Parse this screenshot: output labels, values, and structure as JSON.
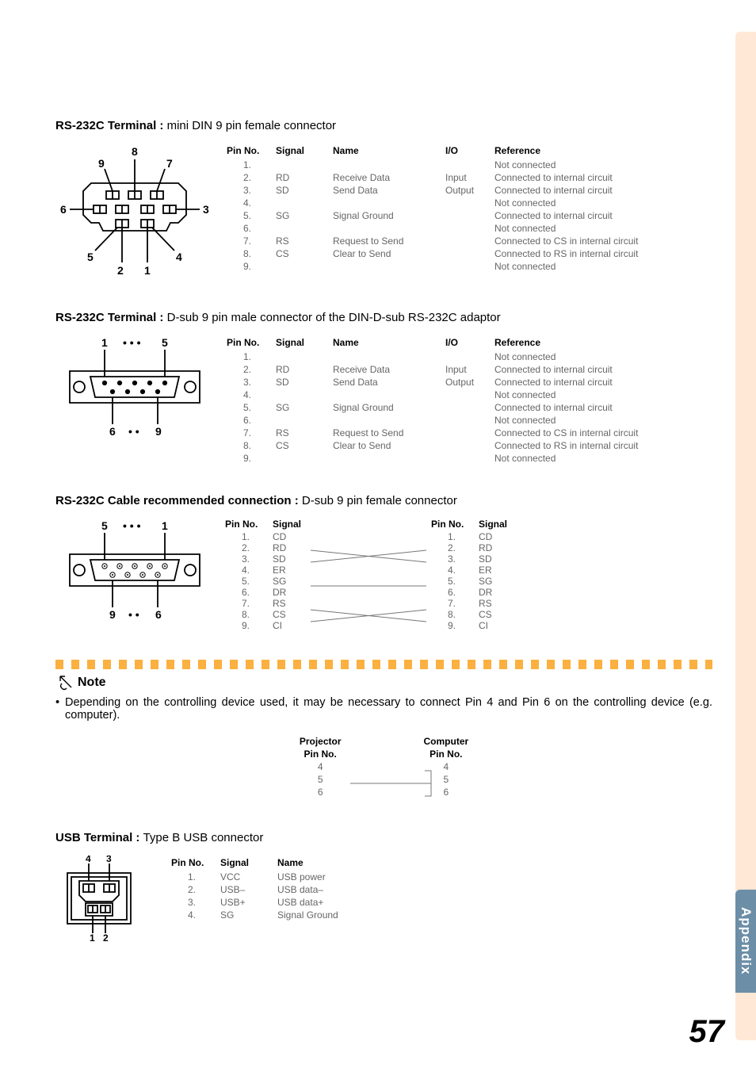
{
  "page": {
    "number": "57",
    "sideLabel": "Appendix"
  },
  "colors": {
    "sideTab": "#ffe8d6",
    "sideLabelBg": "#6c8ea6",
    "sideLabelText": "#ffffff",
    "noteBar": "#fbb040",
    "bodyText": "#000000",
    "tableText": "#666666"
  },
  "sections": {
    "din9": {
      "titleBold": "RS-232C Terminal : ",
      "titleReg": "mini DIN 9 pin female connector",
      "headers": [
        "Pin No.",
        "Signal",
        "Name",
        "I/O",
        "Reference"
      ],
      "diagramLabels": [
        "1",
        "2",
        "3",
        "4",
        "5",
        "6",
        "7",
        "8",
        "9"
      ],
      "rows": [
        {
          "pin": "1.",
          "signal": "",
          "name": "",
          "io": "",
          "ref": "Not connected"
        },
        {
          "pin": "2.",
          "signal": "RD",
          "name": "Receive Data",
          "io": "Input",
          "ref": "Connected to internal circuit"
        },
        {
          "pin": "3.",
          "signal": "SD",
          "name": "Send Data",
          "io": "Output",
          "ref": "Connected to internal circuit"
        },
        {
          "pin": "4.",
          "signal": "",
          "name": "",
          "io": "",
          "ref": "Not connected"
        },
        {
          "pin": "5.",
          "signal": "SG",
          "name": "Signal Ground",
          "io": "",
          "ref": "Connected to internal circuit"
        },
        {
          "pin": "6.",
          "signal": "",
          "name": "",
          "io": "",
          "ref": "Not connected"
        },
        {
          "pin": "7.",
          "signal": "RS",
          "name": "Request to Send",
          "io": "",
          "ref": "Connected to CS in internal circuit"
        },
        {
          "pin": "8.",
          "signal": "CS",
          "name": "Clear to Send",
          "io": "",
          "ref": "Connected to RS in internal circuit"
        },
        {
          "pin": "9.",
          "signal": "",
          "name": "",
          "io": "",
          "ref": "Not connected"
        }
      ]
    },
    "dsub9m": {
      "titleBold": "RS-232C Terminal : ",
      "titleReg": "D-sub 9 pin male connector of the DIN-D-sub RS-232C adaptor",
      "headers": [
        "Pin No.",
        "Signal",
        "Name",
        "I/O",
        "Reference"
      ],
      "diagramLabels": {
        "topLeft": "1",
        "topRight": "5",
        "botLeft": "6",
        "botRight": "9"
      },
      "rows": [
        {
          "pin": "1.",
          "signal": "",
          "name": "",
          "io": "",
          "ref": "Not connected"
        },
        {
          "pin": "2.",
          "signal": "RD",
          "name": "Receive Data",
          "io": "Input",
          "ref": "Connected to internal circuit"
        },
        {
          "pin": "3.",
          "signal": "SD",
          "name": "Send Data",
          "io": "Output",
          "ref": "Connected to internal circuit"
        },
        {
          "pin": "4.",
          "signal": "",
          "name": "",
          "io": "",
          "ref": "Not connected"
        },
        {
          "pin": "5.",
          "signal": "SG",
          "name": "Signal Ground",
          "io": "",
          "ref": "Connected to internal circuit"
        },
        {
          "pin": "6.",
          "signal": "",
          "name": "",
          "io": "",
          "ref": "Not connected"
        },
        {
          "pin": "7.",
          "signal": "RS",
          "name": "Request to Send",
          "io": "",
          "ref": "Connected to CS in internal circuit"
        },
        {
          "pin": "8.",
          "signal": "CS",
          "name": "Clear to Send",
          "io": "",
          "ref": "Connected to RS in internal circuit"
        },
        {
          "pin": "9.",
          "signal": "",
          "name": "",
          "io": "",
          "ref": "Not connected"
        }
      ]
    },
    "cable": {
      "titleBold": "RS-232C Cable recommended connection : ",
      "titleReg": "D-sub 9 pin female connector",
      "headersLeft": [
        "Pin No.",
        "Signal"
      ],
      "headersRight": [
        "Pin No.",
        "Signal"
      ],
      "diagramLabels": {
        "topLeft": "5",
        "topRight": "1",
        "botLeft": "9",
        "botRight": "6"
      },
      "rows": [
        {
          "lp": "1.",
          "ls": "CD",
          "rp": "1.",
          "rs": "CD",
          "line": false
        },
        {
          "lp": "2.",
          "ls": "RD",
          "rp": "2.",
          "rs": "RD",
          "line": true
        },
        {
          "lp": "3.",
          "ls": "SD",
          "rp": "3.",
          "rs": "SD",
          "line": true
        },
        {
          "lp": "4.",
          "ls": "ER",
          "rp": "4.",
          "rs": "ER",
          "line": false
        },
        {
          "lp": "5.",
          "ls": "SG",
          "rp": "5.",
          "rs": "SG",
          "line": true
        },
        {
          "lp": "6.",
          "ls": "DR",
          "rp": "6.",
          "rs": "DR",
          "line": false
        },
        {
          "lp": "7.",
          "ls": "RS",
          "rp": "7.",
          "rs": "RS",
          "line": true
        },
        {
          "lp": "8.",
          "ls": "CS",
          "rp": "8.",
          "rs": "CS",
          "line": true
        },
        {
          "lp": "9.",
          "ls": "CI",
          "rp": "9.",
          "rs": "CI",
          "line": false
        }
      ]
    },
    "note": {
      "title": "Note",
      "text": "Depending on the controlling device used, it may be necessary to connect Pin 4 and Pin 6 on the controlling device (e.g. computer).",
      "miniHeaders": {
        "left": [
          "Projector",
          "Pin No."
        ],
        "right": [
          "Computer",
          "Pin No."
        ]
      },
      "miniRows": [
        {
          "l": "4",
          "r": "4"
        },
        {
          "l": "5",
          "r": "5"
        },
        {
          "l": "6",
          "r": "6"
        }
      ]
    },
    "usb": {
      "titleBold": "USB Terminal : ",
      "titleReg": "Type B USB connector",
      "headers": [
        "Pin No.",
        "Signal",
        "Name"
      ],
      "diagramLabels": [
        "1",
        "2",
        "3",
        "4"
      ],
      "rows": [
        {
          "pin": "1.",
          "signal": "VCC",
          "name": "USB power"
        },
        {
          "pin": "2.",
          "signal": "USB–",
          "name": "USB data–"
        },
        {
          "pin": "3.",
          "signal": "USB+",
          "name": "USB data+"
        },
        {
          "pin": "4.",
          "signal": "SG",
          "name": "Signal Ground"
        }
      ]
    }
  }
}
